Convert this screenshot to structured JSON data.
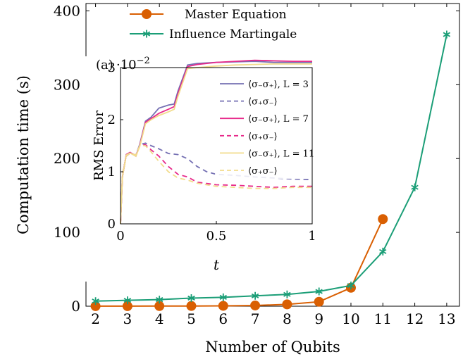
{
  "chart_data": [
    {
      "type": "line",
      "xlabel": "Number of Qubits",
      "ylabel": "Computation time (s)",
      "xlim": [
        1.7,
        13.4
      ],
      "ylim": [
        0,
        410
      ],
      "x_ticks": [
        "2",
        "3",
        "4",
        "5",
        "6",
        "7",
        "8",
        "9",
        "10",
        "11",
        "12",
        "13"
      ],
      "y_ticks": [
        "0",
        "100",
        "200",
        "300",
        "400"
      ],
      "legend_position": "top-center",
      "series": [
        {
          "name": "Master Equation",
          "color": "#d95f02",
          "marker": "circle",
          "x": [
            2,
            3,
            4,
            5,
            6,
            7,
            8,
            9,
            10,
            11
          ],
          "values": [
            0.1,
            0.1,
            0.2,
            0.3,
            0.5,
            1.0,
            2.5,
            6,
            25,
            118
          ]
        },
        {
          "name": "Influence Martingale",
          "color": "#1b9e77",
          "marker": "star",
          "x": [
            2,
            3,
            4,
            5,
            6,
            7,
            8,
            9,
            10,
            11,
            12,
            13
          ],
          "values": [
            7,
            8,
            9,
            11,
            12,
            14,
            16,
            20,
            28,
            74,
            161,
            368
          ]
        }
      ]
    },
    {
      "type": "line",
      "panel_label": "(a)",
      "scale_label": "·10",
      "scale_exponent": "−2",
      "xlabel": "t",
      "ylabel": "RMS Error",
      "xlim": [
        0,
        1
      ],
      "ylim": [
        0,
        3
      ],
      "x_ticks": [
        "0",
        "0.5",
        "1"
      ],
      "y_ticks": [
        "0",
        "1",
        "2",
        "3"
      ],
      "legend_position": "right",
      "legend_entries": [
        {
          "label": "⟨σ₋σ₊⟩, L = 3",
          "color": "#7570b3",
          "dash": false
        },
        {
          "label": "⟨σ₊σ₋⟩",
          "color": "#7570b3",
          "dash": true
        },
        {
          "label": "⟨σ₋σ₊⟩, L = 7",
          "color": "#e7298a",
          "dash": false
        },
        {
          "label": "⟨σ₊σ₋⟩",
          "color": "#e7298a",
          "dash": true
        },
        {
          "label": "⟨σ₋σ₊⟩, L = 11",
          "color": "#f2dc8c",
          "dash": false
        },
        {
          "label": "⟨σ₊σ₋⟩",
          "color": "#f2dc8c",
          "dash": true
        }
      ],
      "series": [
        {
          "color": "#7570b3",
          "dash": false,
          "x": [
            0,
            0.01,
            0.03,
            0.05,
            0.08,
            0.1,
            0.13,
            0.16,
            0.2,
            0.25,
            0.28,
            0.3,
            0.35,
            0.4,
            0.5,
            0.6,
            0.7,
            0.8,
            0.9,
            1.0
          ],
          "y": [
            0,
            0.9,
            1.33,
            1.37,
            1.3,
            1.52,
            1.97,
            2.05,
            2.22,
            2.28,
            2.3,
            2.55,
            3.05,
            3.08,
            3.1,
            3.11,
            3.12,
            3.1,
            3.1,
            3.1
          ]
        },
        {
          "color": "#7570b3",
          "dash": true,
          "x": [
            0,
            0.01,
            0.03,
            0.05,
            0.08,
            0.1,
            0.13,
            0.16,
            0.2,
            0.25,
            0.3,
            0.35,
            0.4,
            0.45,
            0.5,
            0.6,
            0.7,
            0.8,
            0.9,
            1.0
          ],
          "y": [
            0,
            0.95,
            1.3,
            1.36,
            1.32,
            1.52,
            1.55,
            1.5,
            1.44,
            1.35,
            1.33,
            1.25,
            1.1,
            1.0,
            0.95,
            0.93,
            0.9,
            0.88,
            0.86,
            0.85
          ]
        },
        {
          "color": "#e7298a",
          "dash": false,
          "x": [
            0,
            0.01,
            0.03,
            0.05,
            0.08,
            0.1,
            0.13,
            0.16,
            0.2,
            0.25,
            0.28,
            0.3,
            0.35,
            0.4,
            0.5,
            0.6,
            0.7,
            0.8,
            0.9,
            1.0
          ],
          "y": [
            0,
            0.9,
            1.33,
            1.37,
            1.3,
            1.5,
            1.95,
            2.02,
            2.12,
            2.2,
            2.25,
            2.5,
            3.02,
            3.06,
            3.1,
            3.12,
            3.14,
            3.13,
            3.12,
            3.12
          ]
        },
        {
          "color": "#e7298a",
          "dash": true,
          "x": [
            0,
            0.01,
            0.03,
            0.05,
            0.08,
            0.1,
            0.13,
            0.16,
            0.2,
            0.25,
            0.3,
            0.35,
            0.4,
            0.5,
            0.6,
            0.7,
            0.8,
            0.9,
            1.0
          ],
          "y": [
            0,
            0.95,
            1.3,
            1.36,
            1.32,
            1.5,
            1.52,
            1.42,
            1.3,
            1.1,
            0.95,
            0.9,
            0.8,
            0.75,
            0.74,
            0.72,
            0.7,
            0.72,
            0.72
          ]
        },
        {
          "color": "#f2dc8c",
          "dash": false,
          "x": [
            0,
            0.01,
            0.03,
            0.05,
            0.08,
            0.1,
            0.13,
            0.16,
            0.2,
            0.25,
            0.28,
            0.3,
            0.35,
            0.4,
            0.5,
            0.6,
            0.7,
            0.8,
            0.9,
            1.0
          ],
          "y": [
            0,
            0.9,
            1.32,
            1.36,
            1.3,
            1.48,
            1.92,
            2.0,
            2.08,
            2.15,
            2.2,
            2.45,
            2.98,
            3.0,
            3.03,
            3.05,
            3.06,
            3.07,
            3.07,
            3.07
          ]
        },
        {
          "color": "#f2dc8c",
          "dash": true,
          "x": [
            0,
            0.01,
            0.03,
            0.05,
            0.08,
            0.1,
            0.13,
            0.16,
            0.2,
            0.25,
            0.3,
            0.35,
            0.4,
            0.5,
            0.6,
            0.7,
            0.8,
            0.9,
            1.0
          ],
          "y": [
            0,
            0.95,
            1.3,
            1.36,
            1.32,
            1.5,
            1.5,
            1.38,
            1.2,
            1.0,
            0.88,
            0.84,
            0.78,
            0.72,
            0.7,
            0.68,
            0.68,
            0.7,
            0.7
          ]
        }
      ]
    }
  ]
}
